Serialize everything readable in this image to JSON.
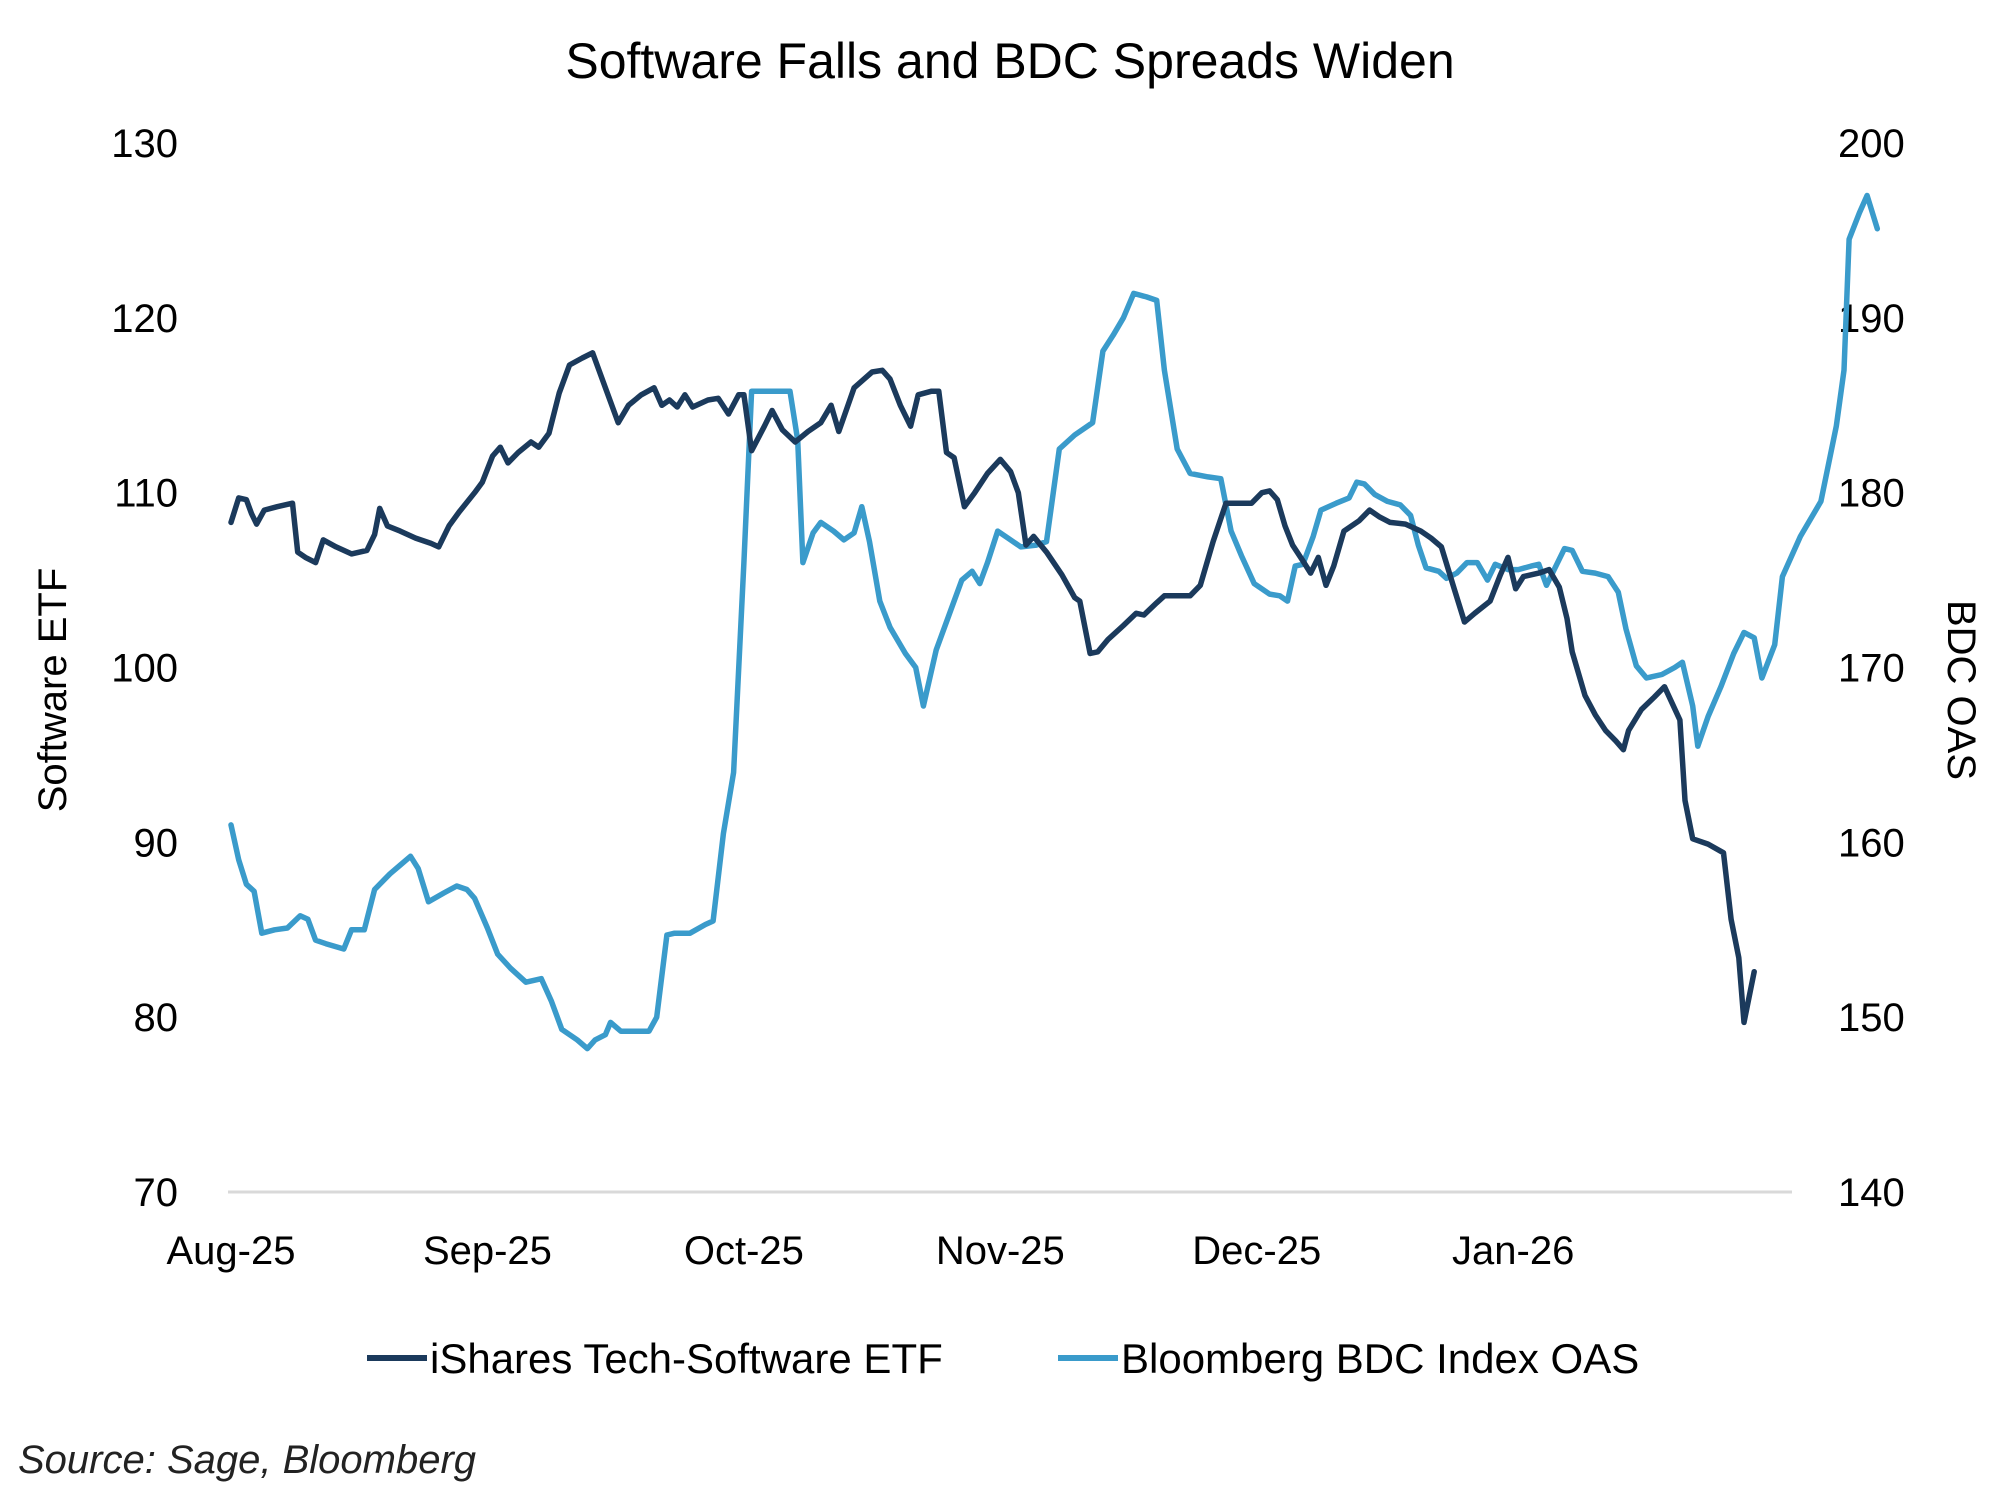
{
  "chart_data": {
    "type": "line",
    "title": "Software Falls and BDC Spreads Widen",
    "ylabel_left": "Software ETF",
    "ylabel_right": "BDC OAS",
    "ylim_left": [
      70,
      130
    ],
    "ylim_right": [
      140,
      200
    ],
    "yticks_left": [
      "130",
      "120",
      "110",
      "100",
      "90",
      "80",
      "70"
    ],
    "yticks_right": [
      "200",
      "190",
      "180",
      "170",
      "160",
      "150",
      "140"
    ],
    "x_range": [
      0,
      6.06
    ],
    "xticks": [
      {
        "label": "Aug-25",
        "x": 0
      },
      {
        "label": "Sep-25",
        "x": 1
      },
      {
        "label": "Oct-25",
        "x": 2
      },
      {
        "label": "Nov-25",
        "x": 3
      },
      {
        "label": "Dec-25",
        "x": 4
      },
      {
        "label": "Jan-26",
        "x": 5
      }
    ],
    "series": [
      {
        "name": "iShares Tech-Software ETF",
        "axis": "left",
        "color": "#1b3a5c",
        "points": [
          [
            0.0,
            108.3
          ],
          [
            0.03,
            109.7
          ],
          [
            0.06,
            109.6
          ],
          [
            0.08,
            108.8
          ],
          [
            0.1,
            108.2
          ],
          [
            0.13,
            109.0
          ],
          [
            0.18,
            109.2
          ],
          [
            0.24,
            109.4
          ],
          [
            0.26,
            106.6
          ],
          [
            0.29,
            106.3
          ],
          [
            0.33,
            106.0
          ],
          [
            0.36,
            107.3
          ],
          [
            0.41,
            106.9
          ],
          [
            0.47,
            106.5
          ],
          [
            0.53,
            106.7
          ],
          [
            0.56,
            107.6
          ],
          [
            0.58,
            109.1
          ],
          [
            0.61,
            108.1
          ],
          [
            0.66,
            107.8
          ],
          [
            0.72,
            107.4
          ],
          [
            0.78,
            107.1
          ],
          [
            0.81,
            106.9
          ],
          [
            0.85,
            108.1
          ],
          [
            0.89,
            108.9
          ],
          [
            0.95,
            110.0
          ],
          [
            0.98,
            110.6
          ],
          [
            1.02,
            112.1
          ],
          [
            1.05,
            112.6
          ],
          [
            1.08,
            111.7
          ],
          [
            1.12,
            112.3
          ],
          [
            1.17,
            112.9
          ],
          [
            1.2,
            112.6
          ],
          [
            1.24,
            113.4
          ],
          [
            1.28,
            115.7
          ],
          [
            1.32,
            117.3
          ],
          [
            1.37,
            117.7
          ],
          [
            1.41,
            118.0
          ],
          [
            1.46,
            116.0
          ],
          [
            1.51,
            114.0
          ],
          [
            1.55,
            115.0
          ],
          [
            1.6,
            115.6
          ],
          [
            1.65,
            116.0
          ],
          [
            1.68,
            115.0
          ],
          [
            1.71,
            115.3
          ],
          [
            1.74,
            114.9
          ],
          [
            1.77,
            115.6
          ],
          [
            1.8,
            114.9
          ],
          [
            1.86,
            115.3
          ],
          [
            1.9,
            115.4
          ],
          [
            1.94,
            114.5
          ],
          [
            1.98,
            115.6
          ],
          [
            2.0,
            115.6
          ],
          [
            2.03,
            112.4
          ],
          [
            2.08,
            113.8
          ],
          [
            2.11,
            114.7
          ],
          [
            2.15,
            113.6
          ],
          [
            2.2,
            112.9
          ],
          [
            2.25,
            113.5
          ],
          [
            2.3,
            114.0
          ],
          [
            2.34,
            115.0
          ],
          [
            2.37,
            113.5
          ],
          [
            2.43,
            116.0
          ],
          [
            2.5,
            116.9
          ],
          [
            2.54,
            117.0
          ],
          [
            2.57,
            116.5
          ],
          [
            2.61,
            115.0
          ],
          [
            2.65,
            113.8
          ],
          [
            2.68,
            115.6
          ],
          [
            2.73,
            115.8
          ],
          [
            2.76,
            115.8
          ],
          [
            2.79,
            112.3
          ],
          [
            2.82,
            112.0
          ],
          [
            2.86,
            109.2
          ],
          [
            2.9,
            110.0
          ],
          [
            2.95,
            111.1
          ],
          [
            3.0,
            111.9
          ],
          [
            3.04,
            111.2
          ],
          [
            3.07,
            110.0
          ],
          [
            3.1,
            107.0
          ],
          [
            3.13,
            107.5
          ],
          [
            3.18,
            106.6
          ],
          [
            3.24,
            105.3
          ],
          [
            3.29,
            104.0
          ],
          [
            3.31,
            103.8
          ],
          [
            3.35,
            100.8
          ],
          [
            3.38,
            100.9
          ],
          [
            3.42,
            101.6
          ],
          [
            3.48,
            102.4
          ],
          [
            3.53,
            103.1
          ],
          [
            3.56,
            103.0
          ],
          [
            3.61,
            103.7
          ],
          [
            3.64,
            104.1
          ],
          [
            3.69,
            104.1
          ],
          [
            3.74,
            104.1
          ],
          [
            3.78,
            104.7
          ],
          [
            3.83,
            107.2
          ],
          [
            3.88,
            109.4
          ],
          [
            3.94,
            109.4
          ],
          [
            3.98,
            109.4
          ],
          [
            4.02,
            110.0
          ],
          [
            4.05,
            110.1
          ],
          [
            4.08,
            109.6
          ],
          [
            4.11,
            108.1
          ],
          [
            4.14,
            107.0
          ],
          [
            4.18,
            106.1
          ],
          [
            4.21,
            105.4
          ],
          [
            4.24,
            106.3
          ],
          [
            4.27,
            104.7
          ],
          [
            4.3,
            105.8
          ],
          [
            4.34,
            107.8
          ],
          [
            4.4,
            108.4
          ],
          [
            4.44,
            109.0
          ],
          [
            4.48,
            108.6
          ],
          [
            4.52,
            108.3
          ],
          [
            4.58,
            108.2
          ],
          [
            4.64,
            107.8
          ],
          [
            4.68,
            107.4
          ],
          [
            4.72,
            106.9
          ],
          [
            4.77,
            104.5
          ],
          [
            4.81,
            102.6
          ],
          [
            4.85,
            103.1
          ],
          [
            4.91,
            103.8
          ],
          [
            4.95,
            105.3
          ],
          [
            4.98,
            106.3
          ],
          [
            5.01,
            104.5
          ],
          [
            5.04,
            105.2
          ],
          [
            5.1,
            105.4
          ],
          [
            5.14,
            105.6
          ],
          [
            5.18,
            104.6
          ],
          [
            5.21,
            102.8
          ],
          [
            5.23,
            100.9
          ],
          [
            5.28,
            98.4
          ],
          [
            5.32,
            97.3
          ],
          [
            5.36,
            96.4
          ],
          [
            5.4,
            95.8
          ],
          [
            5.43,
            95.3
          ],
          [
            5.45,
            96.4
          ],
          [
            5.5,
            97.6
          ],
          [
            5.55,
            98.3
          ],
          [
            5.59,
            98.9
          ],
          [
            5.65,
            97.0
          ],
          [
            5.67,
            92.4
          ],
          [
            5.7,
            90.2
          ],
          [
            5.76,
            89.9
          ],
          [
            5.82,
            89.4
          ],
          [
            5.85,
            85.6
          ],
          [
            5.88,
            83.4
          ],
          [
            5.9,
            79.7
          ],
          [
            5.94,
            82.6
          ]
        ]
      },
      {
        "name": "Bloomberg BDC Index OAS",
        "axis": "right",
        "color": "#3a9bcb",
        "points": [
          [
            0.0,
            161.0
          ],
          [
            0.03,
            159.0
          ],
          [
            0.06,
            157.6
          ],
          [
            0.09,
            157.2
          ],
          [
            0.12,
            154.8
          ],
          [
            0.17,
            155.0
          ],
          [
            0.22,
            155.1
          ],
          [
            0.27,
            155.8
          ],
          [
            0.3,
            155.6
          ],
          [
            0.33,
            154.4
          ],
          [
            0.37,
            154.2
          ],
          [
            0.44,
            153.9
          ],
          [
            0.47,
            155.0
          ],
          [
            0.52,
            155.0
          ],
          [
            0.56,
            157.3
          ],
          [
            0.62,
            158.2
          ],
          [
            0.66,
            158.7
          ],
          [
            0.7,
            159.2
          ],
          [
            0.73,
            158.5
          ],
          [
            0.77,
            156.6
          ],
          [
            0.83,
            157.1
          ],
          [
            0.88,
            157.5
          ],
          [
            0.92,
            157.3
          ],
          [
            0.95,
            156.8
          ],
          [
            1.0,
            155.1
          ],
          [
            1.04,
            153.6
          ],
          [
            1.09,
            152.8
          ],
          [
            1.15,
            152.0
          ],
          [
            1.21,
            152.2
          ],
          [
            1.25,
            150.9
          ],
          [
            1.29,
            149.3
          ],
          [
            1.35,
            148.7
          ],
          [
            1.39,
            148.2
          ],
          [
            1.42,
            148.7
          ],
          [
            1.46,
            149.0
          ],
          [
            1.48,
            149.7
          ],
          [
            1.52,
            149.2
          ],
          [
            1.58,
            149.2
          ],
          [
            1.63,
            149.2
          ],
          [
            1.66,
            150.0
          ],
          [
            1.7,
            154.7
          ],
          [
            1.73,
            154.8
          ],
          [
            1.79,
            154.8
          ],
          [
            1.85,
            155.3
          ],
          [
            1.88,
            155.5
          ],
          [
            1.92,
            160.5
          ],
          [
            1.96,
            164.0
          ],
          [
            2.0,
            176.0
          ],
          [
            2.03,
            185.8
          ],
          [
            2.08,
            185.8
          ],
          [
            2.12,
            185.8
          ],
          [
            2.18,
            185.8
          ],
          [
            2.21,
            183.0
          ],
          [
            2.23,
            176.0
          ],
          [
            2.27,
            177.7
          ],
          [
            2.3,
            178.3
          ],
          [
            2.35,
            177.8
          ],
          [
            2.39,
            177.3
          ],
          [
            2.43,
            177.7
          ],
          [
            2.46,
            179.2
          ],
          [
            2.49,
            177.2
          ],
          [
            2.53,
            173.8
          ],
          [
            2.57,
            172.3
          ],
          [
            2.63,
            170.8
          ],
          [
            2.67,
            170.0
          ],
          [
            2.7,
            167.8
          ],
          [
            2.75,
            171.0
          ],
          [
            2.8,
            173.0
          ],
          [
            2.85,
            175.0
          ],
          [
            2.89,
            175.5
          ],
          [
            2.92,
            174.8
          ],
          [
            2.95,
            176.0
          ],
          [
            2.99,
            177.8
          ],
          [
            3.03,
            177.4
          ],
          [
            3.08,
            176.9
          ],
          [
            3.14,
            177.0
          ],
          [
            3.18,
            177.2
          ],
          [
            3.23,
            182.5
          ],
          [
            3.29,
            183.3
          ],
          [
            3.36,
            184.0
          ],
          [
            3.4,
            188.1
          ],
          [
            3.44,
            189.0
          ],
          [
            3.48,
            190.0
          ],
          [
            3.52,
            191.4
          ],
          [
            3.57,
            191.2
          ],
          [
            3.61,
            191.0
          ],
          [
            3.64,
            187.0
          ],
          [
            3.69,
            182.5
          ],
          [
            3.74,
            181.1
          ],
          [
            3.81,
            180.9
          ],
          [
            3.86,
            180.8
          ],
          [
            3.9,
            177.8
          ],
          [
            3.94,
            176.4
          ],
          [
            3.99,
            174.8
          ],
          [
            4.05,
            174.2
          ],
          [
            4.09,
            174.1
          ],
          [
            4.12,
            173.8
          ],
          [
            4.15,
            175.8
          ],
          [
            4.18,
            175.9
          ],
          [
            4.22,
            177.5
          ],
          [
            4.25,
            179.0
          ],
          [
            4.31,
            179.4
          ],
          [
            4.36,
            179.7
          ],
          [
            4.39,
            180.6
          ],
          [
            4.42,
            180.5
          ],
          [
            4.46,
            179.9
          ],
          [
            4.51,
            179.5
          ],
          [
            4.56,
            179.3
          ],
          [
            4.6,
            178.7
          ],
          [
            4.63,
            177.0
          ],
          [
            4.66,
            175.7
          ],
          [
            4.71,
            175.5
          ],
          [
            4.74,
            175.1
          ],
          [
            4.78,
            175.4
          ],
          [
            4.82,
            176.0
          ],
          [
            4.86,
            176.0
          ],
          [
            4.9,
            175.0
          ],
          [
            4.93,
            175.9
          ],
          [
            4.98,
            175.6
          ],
          [
            5.02,
            175.6
          ],
          [
            5.07,
            175.8
          ],
          [
            5.1,
            175.9
          ],
          [
            5.13,
            174.7
          ],
          [
            5.16,
            175.6
          ],
          [
            5.2,
            176.8
          ],
          [
            5.23,
            176.7
          ],
          [
            5.27,
            175.5
          ],
          [
            5.32,
            175.4
          ],
          [
            5.37,
            175.2
          ],
          [
            5.41,
            174.3
          ],
          [
            5.44,
            172.2
          ],
          [
            5.48,
            170.1
          ],
          [
            5.52,
            169.4
          ],
          [
            5.58,
            169.6
          ],
          [
            5.63,
            170.0
          ],
          [
            5.66,
            170.3
          ],
          [
            5.7,
            167.8
          ],
          [
            5.72,
            165.5
          ],
          [
            5.76,
            167.2
          ],
          [
            5.81,
            168.9
          ],
          [
            5.86,
            170.8
          ],
          [
            5.9,
            172.0
          ],
          [
            5.94,
            171.7
          ],
          [
            5.97,
            169.4
          ],
          [
            6.02,
            171.3
          ],
          [
            6.05,
            175.2
          ],
          [
            6.12,
            177.5
          ],
          [
            6.2,
            179.5
          ],
          [
            6.26,
            183.8
          ],
          [
            6.29,
            187.0
          ],
          [
            6.31,
            194.5
          ],
          [
            6.35,
            196.0
          ],
          [
            6.38,
            197.0
          ],
          [
            6.42,
            195.1
          ]
        ]
      }
    ],
    "legend_position": "bottom",
    "grid": false
  },
  "source_note": "Source: Sage, Bloomberg"
}
